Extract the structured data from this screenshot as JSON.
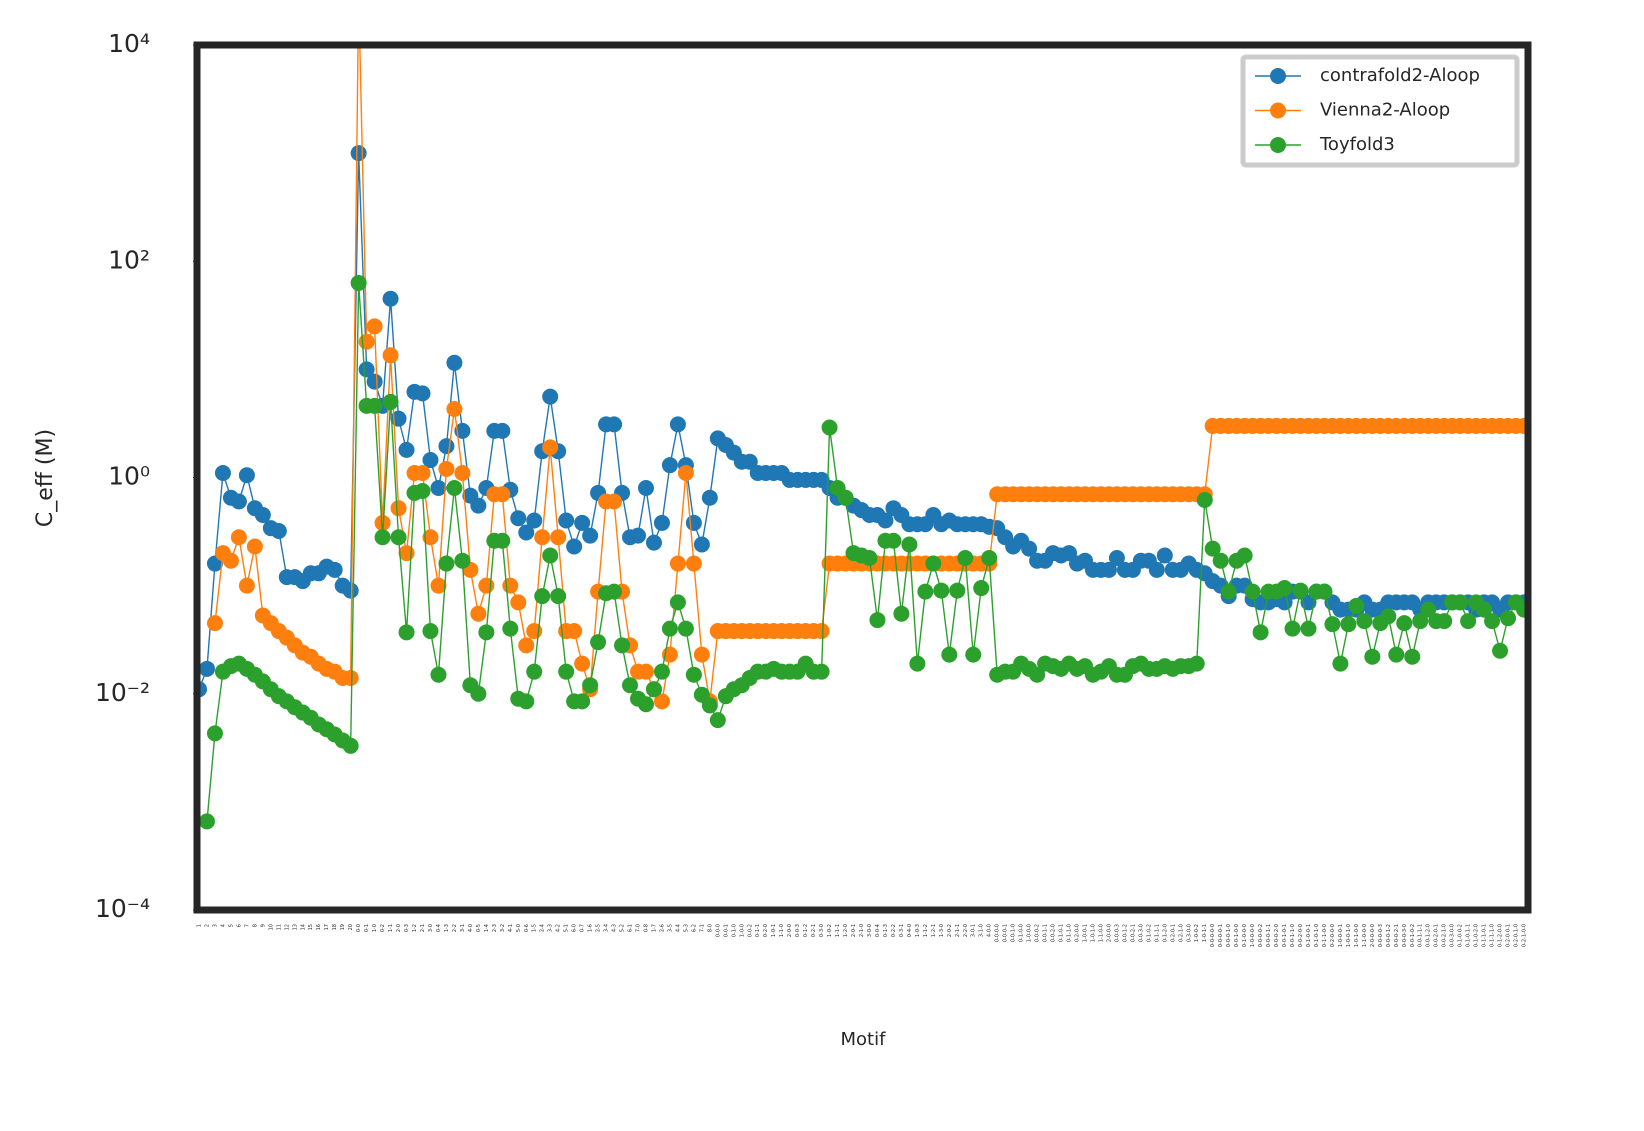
{
  "chart_data": {
    "type": "line",
    "xlabel": "Motif",
    "ylabel": "C_eff (M)",
    "yscale": "log",
    "ylim": [
      0.0001,
      10000
    ],
    "yticks": [
      {
        "value": 0.0001,
        "label": "10⁻⁴"
      },
      {
        "value": 0.01,
        "label": "10⁻²"
      },
      {
        "value": 1,
        "label": "10⁰"
      },
      {
        "value": 100,
        "label": "10²"
      },
      {
        "value": 10000,
        "label": "10⁴"
      }
    ],
    "grid": false,
    "legend": "upper right",
    "categories": [
      "1",
      "2",
      "3",
      "4",
      "5",
      "6",
      "7",
      "8",
      "9",
      "10",
      "11",
      "12",
      "13",
      "14",
      "15",
      "16",
      "17",
      "18",
      "19",
      "20",
      "0-0",
      "0-1",
      "1-0",
      "0-2",
      "1-1",
      "2-0",
      "0-3",
      "1-2",
      "2-1",
      "3-0",
      "0-4",
      "1-3",
      "2-2",
      "3-1",
      "4-0",
      "0-5",
      "1-4",
      "2-3",
      "3-2",
      "4-1",
      "5-0",
      "0-6",
      "1-5",
      "2-4",
      "3-3",
      "4-2",
      "5-1",
      "6-0",
      "0-7",
      "1-6",
      "2-5",
      "3-4",
      "4-3",
      "5-2",
      "6-1",
      "7-0",
      "0-8",
      "1-7",
      "2-6",
      "3-5",
      "4-4",
      "5-3",
      "6-2",
      "7-1",
      "8-0",
      "0-0-0",
      "0-0-1",
      "0-1-0",
      "1-0-0",
      "0-0-2",
      "0-1-1",
      "0-2-0",
      "1-0-1",
      "1-1-0",
      "2-0-0",
      "0-0-3",
      "0-1-2",
      "0-2-1",
      "0-3-0",
      "1-0-2",
      "1-1-1",
      "1-2-0",
      "2-0-1",
      "2-1-0",
      "3-0-0",
      "0-0-4",
      "0-1-3",
      "0-2-2",
      "0-3-1",
      "0-4-0",
      "1-0-3",
      "1-1-2",
      "1-2-1",
      "1-3-0",
      "2-0-2",
      "2-1-1",
      "2-2-0",
      "3-0-1",
      "3-1-0",
      "4-0-0",
      "0-0-0-0",
      "0-0-0-1",
      "0-0-1-0",
      "0-1-0-0",
      "1-0-0-0",
      "0-0-0-2",
      "0-0-1-1",
      "0-0-2-0",
      "0-1-0-1",
      "0-1-1-0",
      "0-2-0-0",
      "1-0-0-1",
      "1-0-1-0",
      "1-1-0-0",
      "2-0-0-0",
      "0-0-0-3",
      "0-0-1-2",
      "0-0-2-1",
      "0-0-3-0",
      "0-1-0-2",
      "0-1-1-1",
      "0-1-2-0",
      "0-2-0-1",
      "0-2-1-0",
      "0-3-0-0",
      "1-0-0-2",
      "1-0-1-1",
      "0-0-0-0-0",
      "0-0-0-0-1",
      "0-0-0-1-0",
      "0-0-1-0-0",
      "0-1-0-0-0",
      "1-0-0-0-0",
      "0-0-0-0-2",
      "0-0-0-1-1",
      "0-0-0-2-0",
      "0-0-1-0-1",
      "0-0-1-1-0",
      "0-0-2-0-0",
      "0-1-0-0-1",
      "0-1-0-1-0",
      "0-1-1-0-0",
      "0-2-0-0-0",
      "1-0-0-0-1",
      "1-0-0-1-0",
      "1-0-1-0-0",
      "1-1-0-0-0",
      "2-0-0-0-0",
      "0-0-0-0-3",
      "0-0-0-1-2",
      "0-0-0-2-1",
      "0-0-0-3-0",
      "0-0-1-0-2",
      "0-0-1-1-1",
      "0-0-1-2-0",
      "0-0-2-0-1",
      "0-0-2-1-0",
      "0-0-3-0-0",
      "0-1-0-0-2",
      "0-1-0-1-1",
      "0-1-0-2-0",
      "0-1-1-0-1",
      "0-1-1-1-0",
      "0-1-2-0-0",
      "0-2-0-0-1",
      "0-2-0-1-0",
      "0-2-1-0-0"
    ],
    "series": [
      {
        "name": "contrafold2-Aloop",
        "color": "#1f77b4",
        "values": [
          0.011,
          0.017,
          0.16,
          1.1,
          0.65,
          0.6,
          1.05,
          0.52,
          0.45,
          0.34,
          0.32,
          0.12,
          0.12,
          0.11,
          0.13,
          0.13,
          0.15,
          0.14,
          0.1,
          0.09,
          1000,
          10,
          7.7,
          4.6,
          45,
          3.5,
          1.8,
          6.2,
          6,
          1.45,
          0.8,
          1.95,
          11.5,
          2.7,
          0.68,
          0.55,
          0.8,
          2.7,
          2.7,
          0.77,
          0.42,
          0.31,
          0.4,
          1.75,
          5.6,
          1.75,
          0.4,
          0.23,
          0.38,
          0.29,
          0.72,
          3.1,
          3.1,
          0.72,
          0.28,
          0.29,
          0.8,
          0.25,
          0.38,
          1.3,
          3.1,
          1.3,
          0.38,
          0.24,
          0.65,
          2.3,
          2,
          1.7,
          1.4,
          1.4,
          1.1,
          1.1,
          1.1,
          1.1,
          0.95,
          0.95,
          0.95,
          0.95,
          0.95,
          0.8,
          0.65,
          0.65,
          0.55,
          0.5,
          0.45,
          0.45,
          0.4,
          0.52,
          0.45,
          0.37,
          0.37,
          0.37,
          0.45,
          0.37,
          0.4,
          0.37,
          0.37,
          0.37,
          0.37,
          0.35,
          0.34,
          0.28,
          0.23,
          0.26,
          0.22,
          0.17,
          0.17,
          0.2,
          0.19,
          0.2,
          0.16,
          0.17,
          0.14,
          0.14,
          0.14,
          0.18,
          0.14,
          0.14,
          0.17,
          0.17,
          0.14,
          0.19,
          0.14,
          0.14,
          0.16,
          0.14,
          0.13,
          0.11,
          0.1,
          0.08,
          0.1,
          0.1,
          0.075,
          0.07,
          0.07,
          0.075,
          0.07,
          0.088,
          0.088,
          0.07,
          0.088,
          0.088,
          0.07,
          0.06,
          0.06,
          0.06,
          0.07,
          0.06,
          0.06,
          0.07,
          0.07,
          0.07,
          0.07,
          0.06,
          0.07,
          0.07,
          0.07,
          0.07,
          0.07,
          0.07,
          0.06,
          0.07,
          0.07,
          0.06,
          0.07,
          0.07,
          0.07
        ]
      },
      {
        "name": "Vienna2-Aloop",
        "color": "#ff7f0e",
        "values": [
          null,
          null,
          0.045,
          0.2,
          0.17,
          0.28,
          0.1,
          0.23,
          0.053,
          0.045,
          0.038,
          0.033,
          0.028,
          0.024,
          0.022,
          0.019,
          0.017,
          0.016,
          0.014,
          0.014,
          30000,
          18,
          25,
          0.38,
          13.5,
          0.52,
          0.2,
          1.1,
          1.1,
          0.28,
          0.1,
          1.2,
          4.3,
          1.1,
          0.14,
          0.055,
          0.1,
          0.7,
          0.7,
          0.1,
          0.07,
          0.028,
          0.038,
          0.28,
          1.9,
          0.28,
          0.038,
          0.038,
          0.019,
          0.011,
          0.088,
          0.6,
          0.6,
          0.088,
          0.028,
          0.016,
          0.016,
          0.011,
          0.0085,
          0.023,
          0.16,
          1.1,
          0.16,
          0.023,
          0.0085,
          0.038,
          0.038,
          0.038,
          0.038,
          0.038,
          0.038,
          0.038,
          0.038,
          0.038,
          0.038,
          0.038,
          0.038,
          0.038,
          0.038,
          0.16,
          0.16,
          0.16,
          0.16,
          0.16,
          0.16,
          0.16,
          0.16,
          0.16,
          0.16,
          0.16,
          0.16,
          0.16,
          0.16,
          0.16,
          0.16,
          0.16,
          0.16,
          0.16,
          0.16,
          0.16,
          0.7,
          0.7,
          0.7,
          0.7,
          0.7,
          0.7,
          0.7,
          0.7,
          0.7,
          0.7,
          0.7,
          0.7,
          0.7,
          0.7,
          0.7,
          0.7,
          0.7,
          0.7,
          0.7,
          0.7,
          0.7,
          0.7,
          0.7,
          0.7,
          0.7,
          0.7,
          0.7,
          3,
          3,
          3,
          3,
          3,
          3,
          3,
          3,
          3,
          3,
          3,
          3,
          3,
          3,
          3,
          3,
          3,
          3,
          3,
          3,
          3,
          3,
          3,
          3,
          3,
          3,
          3,
          3,
          3,
          3,
          3,
          3,
          3,
          3,
          3,
          3,
          3,
          3,
          3,
          3
        ]
      },
      {
        "name": "Toyfold3",
        "color": "#2ca02c",
        "values": [
          null,
          0.00066,
          0.0043,
          0.016,
          0.018,
          0.019,
          0.017,
          0.015,
          0.013,
          0.011,
          0.0095,
          0.0085,
          0.0075,
          0.0067,
          0.006,
          0.0052,
          0.0047,
          0.0042,
          0.0037,
          0.0033,
          63,
          4.6,
          4.6,
          0.28,
          5,
          0.28,
          0.037,
          0.72,
          0.75,
          0.038,
          0.015,
          0.16,
          0.8,
          0.17,
          0.012,
          0.01,
          0.037,
          0.26,
          0.26,
          0.04,
          0.009,
          0.0085,
          0.016,
          0.08,
          0.19,
          0.08,
          0.016,
          0.0085,
          0.0085,
          0.012,
          0.03,
          0.085,
          0.088,
          0.028,
          0.012,
          0.009,
          0.008,
          0.011,
          0.016,
          0.04,
          0.07,
          0.04,
          0.015,
          0.0098,
          0.0078,
          0.0057,
          0.0095,
          0.011,
          0.012,
          0.014,
          0.016,
          0.016,
          0.017,
          0.016,
          0.016,
          0.016,
          0.019,
          0.016,
          0.016,
          2.9,
          0.8,
          0.65,
          0.2,
          0.19,
          0.18,
          0.048,
          0.26,
          0.26,
          0.055,
          0.24,
          0.019,
          0.088,
          0.16,
          0.09,
          0.023,
          0.09,
          0.18,
          0.023,
          0.095,
          0.18,
          0.015,
          0.016,
          0.016,
          0.019,
          0.017,
          0.015,
          0.019,
          0.018,
          0.017,
          0.019,
          0.017,
          0.018,
          0.015,
          0.016,
          0.018,
          0.015,
          0.015,
          0.018,
          0.019,
          0.017,
          0.017,
          0.018,
          0.017,
          0.018,
          0.018,
          0.019,
          0.62,
          0.22,
          0.17,
          0.088,
          0.17,
          0.19,
          0.088,
          0.037,
          0.088,
          0.088,
          0.095,
          0.04,
          0.09,
          0.04,
          0.088,
          0.088,
          0.044,
          0.019,
          0.044,
          0.065,
          0.047,
          0.022,
          0.045,
          0.052,
          0.023,
          0.045,
          0.022,
          0.047,
          0.06,
          0.047,
          0.047,
          0.07,
          0.07,
          0.047,
          0.07,
          0.06,
          0.047,
          0.025,
          0.05,
          0.07,
          0.06
        ]
      }
    ]
  }
}
